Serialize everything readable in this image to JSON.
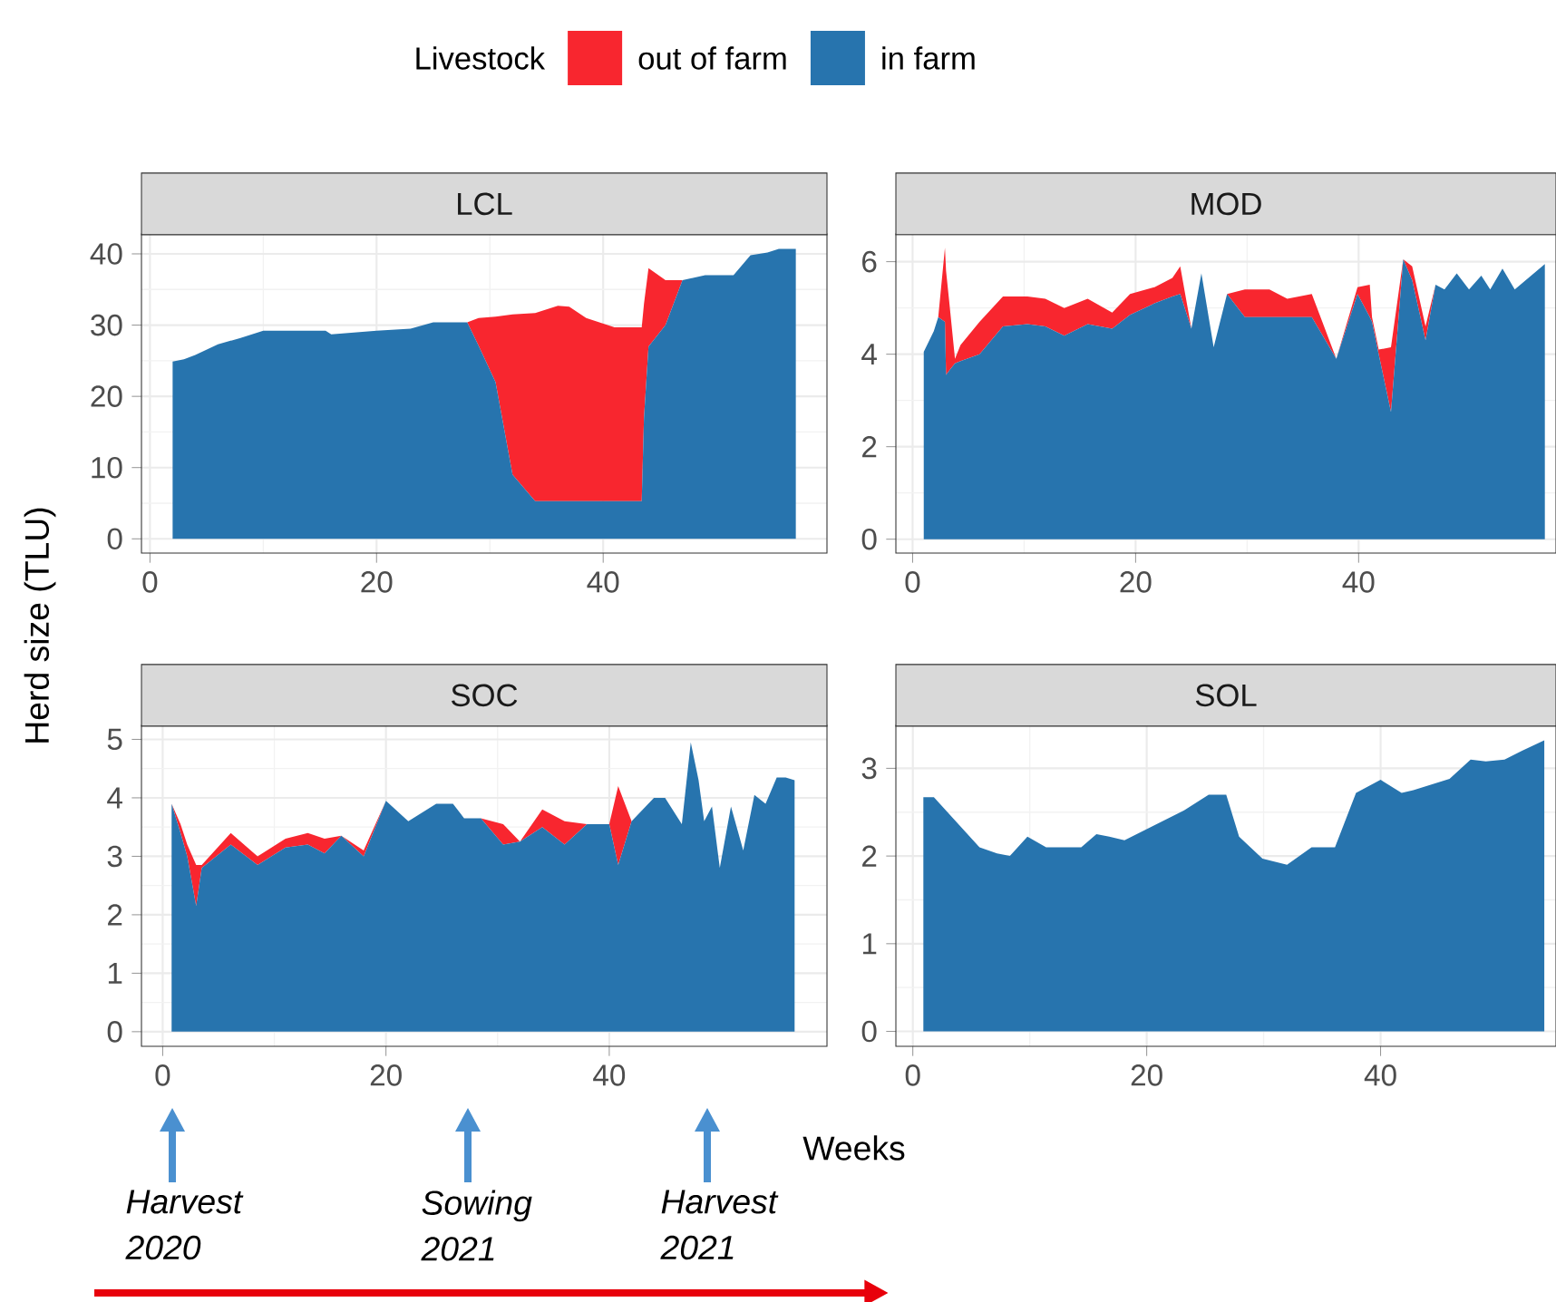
{
  "chart_data": [
    {
      "type": "area",
      "title": "LCL",
      "stacked": true,
      "grid": true,
      "legend": "top",
      "legend_title": "Livestock",
      "ylabel": "Herd size (TLU)",
      "xlim": [
        -0.75,
        59.75
      ],
      "ylim": [
        -2,
        42.8
      ],
      "xticks": [
        0,
        20,
        40
      ],
      "yticks": [
        0,
        10,
        20,
        30,
        40
      ],
      "x": [
        2,
        3,
        4,
        6,
        8,
        10,
        15.5,
        16,
        20,
        23,
        25,
        28,
        29,
        30.5,
        32,
        34,
        36,
        37,
        38.5,
        41,
        43.4,
        43.6,
        44,
        45.5,
        47,
        49,
        51.5,
        53,
        54.5,
        55.5,
        57
      ],
      "series": [
        {
          "name": "in farm",
          "color": "#2774ae",
          "values": [
            24.9,
            25.2,
            25.8,
            27.3,
            28.2,
            29.2,
            29.2,
            28.7,
            29.2,
            29.5,
            30.4,
            30.4,
            27.1,
            22,
            9,
            5.3,
            5.3,
            5.3,
            5.3,
            5.3,
            5.3,
            17,
            27,
            30,
            36.3,
            37,
            37,
            39.8,
            40.2,
            40.7,
            40.7
          ]
        },
        {
          "name": "out of farm",
          "color": "#f8262f",
          "values": [
            0,
            0,
            0,
            0,
            0,
            0,
            0,
            0,
            0,
            0,
            0,
            0,
            3.9,
            9.2,
            22.5,
            26.4,
            27.4,
            27.3,
            25.7,
            24.4,
            24.4,
            16,
            11,
            6.3,
            0,
            0,
            0,
            0,
            0,
            0,
            0
          ]
        }
      ]
    },
    {
      "type": "area",
      "title": "MOD",
      "stacked": true,
      "grid": true,
      "xlim": [
        -1.5,
        57.7
      ],
      "ylim": [
        -0.3,
        6.6
      ],
      "xticks": [
        0,
        20,
        40
      ],
      "yticks": [
        0,
        2,
        4,
        6
      ],
      "x": [
        1,
        1.9,
        2.3,
        2.9,
        3,
        3.3,
        3.8,
        4.3,
        6,
        8.1,
        10.3,
        11.9,
        13.6,
        15.7,
        17.9,
        19.5,
        21.7,
        23.3,
        24,
        25,
        25.9,
        27,
        28.2,
        29.8,
        32,
        33.6,
        35.8,
        38,
        39.9,
        41,
        41.2,
        41.8,
        42.9,
        44,
        44.8,
        46,
        46.9,
        47.7,
        48.8,
        49.9,
        51,
        51.8,
        52.9,
        54,
        56.7
      ],
      "series": [
        {
          "color": "#2774ae",
          "values": [
            4.05,
            4.5,
            4.8,
            4.7,
            3.55,
            3.65,
            3.8,
            3.85,
            4,
            4.6,
            4.65,
            4.6,
            4.4,
            4.65,
            4.55,
            4.85,
            5.1,
            5.25,
            5.3,
            4.55,
            5.75,
            4.15,
            5.3,
            4.8,
            4.8,
            4.8,
            4.8,
            3.9,
            5.3,
            4.8,
            4.7,
            4,
            2.75,
            6.05,
            5.6,
            4.3,
            5.5,
            5.4,
            5.75,
            5.4,
            5.7,
            5.4,
            5.85,
            5.4,
            5.95
          ]
        },
        {
          "color": "#f8262f",
          "values": [
            0,
            0,
            0,
            1.6,
            2.25,
            1.45,
            0.1,
            0.35,
            0.7,
            0.65,
            0.6,
            0.6,
            0.6,
            0.55,
            0.35,
            0.45,
            0.35,
            0.4,
            0.6,
            0,
            0,
            0,
            0,
            0.6,
            0.6,
            0.4,
            0.5,
            0,
            0.15,
            0.7,
            0.1,
            0.1,
            1.4,
            0,
            0.3,
            0.3,
            0,
            0,
            0,
            0,
            0,
            0,
            0,
            0,
            0
          ]
        }
      ]
    },
    {
      "type": "area",
      "title": "SOC",
      "stacked": true,
      "grid": true,
      "xlabel": "Weeks",
      "xlim": [
        -1.9,
        59.5
      ],
      "ylim": [
        -0.25,
        5.24
      ],
      "xticks": [
        0,
        20,
        40
      ],
      "yticks": [
        0,
        1,
        2,
        3,
        4,
        5
      ],
      "annotations": [
        "Harvest 2020",
        "Sowing 2021",
        "Harvest 2021"
      ],
      "x": [
        0.8,
        1.6,
        2.2,
        3,
        3.5,
        6.1,
        8.5,
        11,
        13,
        14.5,
        16,
        18,
        20,
        22,
        24.5,
        26,
        27,
        28.5,
        30.5,
        32,
        34,
        36,
        38,
        40,
        40.8,
        42,
        44,
        45,
        46.5,
        47.3,
        48,
        48.5,
        49.2,
        49.9,
        50.9,
        52,
        53,
        54,
        55,
        55.8,
        56.6
      ],
      "series": [
        {
          "color": "#2774ae",
          "values": [
            3.9,
            3.4,
            3,
            2.15,
            2.8,
            3.2,
            2.85,
            3.15,
            3.2,
            3.05,
            3.35,
            3,
            3.95,
            3.6,
            3.9,
            3.9,
            3.65,
            3.65,
            3.2,
            3.25,
            3.5,
            3.2,
            3.55,
            3.55,
            2.85,
            3.6,
            4,
            4,
            3.55,
            4.95,
            4.3,
            3.6,
            3.85,
            2.8,
            3.85,
            3.1,
            4.05,
            3.9,
            4.35,
            4.35,
            4.3
          ]
        },
        {
          "color": "#f8262f",
          "values": [
            0,
            0.15,
            0.2,
            0.7,
            0.05,
            0.2,
            0.15,
            0.15,
            0.2,
            0.25,
            0,
            0.1,
            0,
            0,
            0,
            0,
            0,
            0,
            0.35,
            0,
            0.3,
            0.4,
            0,
            0,
            1.35,
            0,
            0,
            0,
            0,
            0,
            0,
            0,
            0,
            0,
            0,
            0,
            0,
            0,
            0,
            0,
            0
          ]
        }
      ]
    },
    {
      "type": "area",
      "title": "SOL",
      "stacked": true,
      "grid": true,
      "xlim": [
        -1.45,
        55
      ],
      "ylim": [
        -0.17,
        3.49
      ],
      "xticks": [
        0,
        20,
        40
      ],
      "yticks": [
        0,
        1,
        2,
        3
      ],
      "x": [
        0.9,
        1.8,
        5.7,
        7.2,
        8.3,
        9.8,
        11.4,
        14.4,
        15.7,
        16.8,
        18.1,
        23.2,
        25.3,
        26.8,
        27.9,
        29.9,
        32,
        34.1,
        36.1,
        37.9,
        40,
        41.8,
        42.8,
        45.9,
        47.7,
        49,
        50.6,
        52.1,
        54
      ],
      "series": [
        {
          "color": "#2774ae",
          "values": [
            2.67,
            2.67,
            2.1,
            2.03,
            2,
            2.22,
            2.1,
            2.1,
            2.25,
            2.22,
            2.18,
            2.52,
            2.7,
            2.7,
            2.22,
            1.97,
            1.9,
            2.1,
            2.1,
            2.72,
            2.87,
            2.72,
            2.75,
            2.88,
            3.1,
            3.08,
            3.1,
            3.2,
            3.32
          ]
        }
      ]
    }
  ]
}
